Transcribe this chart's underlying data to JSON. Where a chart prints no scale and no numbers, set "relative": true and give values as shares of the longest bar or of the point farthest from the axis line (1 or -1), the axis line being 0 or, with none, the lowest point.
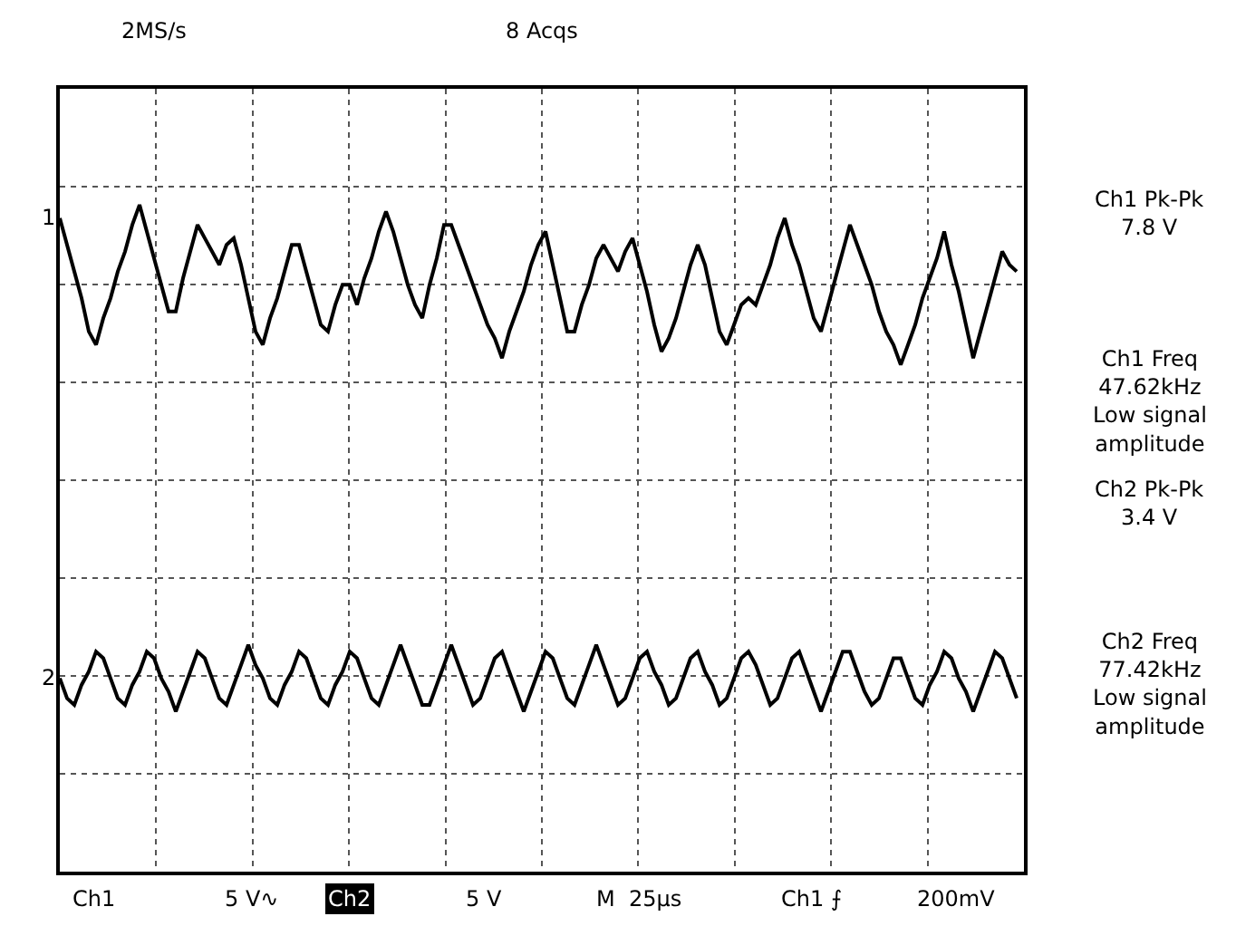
{
  "chart_data": {
    "type": "line",
    "relative": true,
    "grid": true,
    "legend": false,
    "tick_labels": false,
    "marker": "none",
    "line_style": "solid",
    "categories": [
      null,
      null,
      null,
      null,
      null,
      null,
      null,
      null,
      null,
      null,
      null,
      null,
      null,
      null,
      null,
      null,
      null,
      null,
      null,
      null,
      null,
      null,
      null,
      null,
      null,
      null,
      null,
      null,
      null,
      null,
      null,
      null,
      null,
      null,
      null,
      null,
      null,
      null,
      null,
      null,
      null,
      null,
      null,
      null,
      null,
      null,
      null,
      null,
      null,
      null,
      null,
      null,
      null,
      null,
      null,
      null,
      null,
      null,
      null,
      null,
      null,
      null,
      null,
      null,
      null,
      null,
      null,
      null,
      null,
      null,
      null,
      null,
      null,
      null,
      null,
      null,
      null,
      null,
      null,
      null,
      null,
      null,
      null,
      null,
      null,
      null,
      null,
      null,
      null,
      null,
      null,
      null,
      null,
      null,
      null,
      null,
      null,
      null,
      null,
      null,
      null,
      null,
      null,
      null,
      null,
      null,
      null,
      null,
      null,
      null,
      null,
      null,
      null,
      null,
      null,
      null,
      null,
      null,
      null,
      null,
      null,
      null,
      null,
      null,
      null,
      null,
      null,
      null,
      null,
      null,
      null,
      null,
      null
    ],
    "series": [
      {
        "name": "1",
        "color": "#000000",
        "values": [
          0.98,
          0.94,
          0.9,
          0.86,
          0.81,
          0.79,
          0.83,
          0.86,
          0.9,
          0.93,
          0.97,
          1.0,
          0.96,
          0.92,
          0.88,
          0.84,
          0.84,
          0.89,
          0.93,
          0.97,
          0.95,
          0.93,
          0.91,
          0.94,
          0.95,
          0.91,
          0.86,
          0.81,
          0.79,
          0.83,
          0.86,
          0.9,
          0.94,
          0.94,
          0.9,
          0.86,
          0.82,
          0.81,
          0.85,
          0.88,
          0.88,
          0.85,
          0.89,
          0.92,
          0.96,
          0.99,
          0.96,
          0.92,
          0.88,
          0.85,
          0.83,
          0.88,
          0.92,
          0.97,
          0.97,
          0.94,
          0.91,
          0.88,
          0.85,
          0.82,
          0.8,
          0.77,
          0.81,
          0.84,
          0.87,
          0.91,
          0.94,
          0.96,
          0.91,
          0.86,
          0.81,
          0.81,
          0.85,
          0.88,
          0.92,
          0.94,
          0.92,
          0.9,
          0.93,
          0.95,
          0.91,
          0.87,
          0.82,
          0.78,
          0.8,
          0.83,
          0.87,
          0.91,
          0.94,
          0.91,
          0.86,
          0.81,
          0.79,
          0.82,
          0.85,
          0.86,
          0.85,
          0.88,
          0.91,
          0.95,
          0.98,
          0.94,
          0.91,
          0.87,
          0.83,
          0.81,
          0.85,
          0.89,
          0.93,
          0.97,
          0.94,
          0.91,
          0.88,
          0.84,
          0.81,
          0.79,
          0.76,
          0.79,
          0.82,
          0.86,
          0.89,
          0.92,
          0.96,
          0.91,
          0.87,
          0.82,
          0.77,
          0.81,
          0.85,
          0.89,
          0.93,
          0.91,
          0.9
        ]
      },
      {
        "name": "2",
        "color": "#000000",
        "values": [
          0.29,
          0.26,
          0.25,
          0.28,
          0.3,
          0.33,
          0.32,
          0.29,
          0.26,
          0.25,
          0.28,
          0.3,
          0.33,
          0.32,
          0.29,
          0.27,
          0.24,
          0.27,
          0.3,
          0.33,
          0.32,
          0.29,
          0.26,
          0.25,
          0.28,
          0.31,
          0.34,
          0.31,
          0.29,
          0.26,
          0.25,
          0.28,
          0.3,
          0.33,
          0.32,
          0.29,
          0.26,
          0.25,
          0.28,
          0.3,
          0.33,
          0.32,
          0.29,
          0.26,
          0.25,
          0.28,
          0.31,
          0.34,
          0.31,
          0.28,
          0.25,
          0.25,
          0.28,
          0.31,
          0.34,
          0.31,
          0.28,
          0.25,
          0.26,
          0.29,
          0.32,
          0.33,
          0.3,
          0.27,
          0.24,
          0.27,
          0.3,
          0.33,
          0.32,
          0.29,
          0.26,
          0.25,
          0.28,
          0.31,
          0.34,
          0.31,
          0.28,
          0.25,
          0.26,
          0.29,
          0.32,
          0.33,
          0.3,
          0.28,
          0.25,
          0.26,
          0.29,
          0.32,
          0.33,
          0.3,
          0.28,
          0.25,
          0.26,
          0.29,
          0.32,
          0.33,
          0.31,
          0.28,
          0.25,
          0.26,
          0.29,
          0.32,
          0.33,
          0.3,
          0.27,
          0.24,
          0.27,
          0.3,
          0.33,
          0.33,
          0.3,
          0.27,
          0.25,
          0.26,
          0.29,
          0.32,
          0.32,
          0.29,
          0.26,
          0.25,
          0.28,
          0.3,
          0.33,
          0.32,
          0.29,
          0.27,
          0.24,
          0.27,
          0.3,
          0.33,
          0.32,
          0.29,
          0.26
        ]
      }
    ],
    "annotations": [
      "2MS/s",
      "8 Acqs",
      "Ch1 Pk-Pk\n7.8 V",
      "Ch1 Freq\n47.62kHz\nLow signal\namplitude",
      "Ch2 Pk-Pk\n3.4 V",
      "Ch2 Freq\n77.42kHz\nLow signal\namplitude",
      "Ch1",
      "5 V∿",
      "Ch2",
      "5 V",
      "M  25µs",
      "Ch1 ⨍",
      "200mV"
    ]
  }
}
